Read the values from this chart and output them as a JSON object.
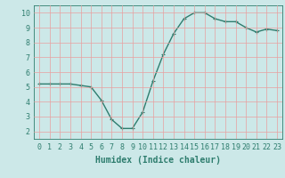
{
  "x": [
    0,
    1,
    2,
    3,
    4,
    5,
    6,
    7,
    8,
    9,
    10,
    11,
    12,
    13,
    14,
    15,
    16,
    17,
    18,
    19,
    20,
    21,
    22,
    23
  ],
  "y": [
    5.2,
    5.2,
    5.2,
    5.2,
    5.1,
    5.0,
    4.1,
    2.8,
    2.2,
    2.2,
    3.3,
    5.4,
    7.2,
    8.6,
    9.6,
    10.0,
    10.0,
    9.6,
    9.4,
    9.4,
    9.0,
    8.7,
    8.9,
    8.8
  ],
  "line_color": "#2e7d6e",
  "marker": "+",
  "marker_size": 3,
  "background_color": "#cce8e8",
  "grid_color": "#e8a0a0",
  "xlabel": "Humidex (Indice chaleur)",
  "xlim": [
    -0.5,
    23.5
  ],
  "ylim": [
    1.5,
    10.5
  ],
  "xticks": [
    0,
    1,
    2,
    3,
    4,
    5,
    6,
    7,
    8,
    9,
    10,
    11,
    12,
    13,
    14,
    15,
    16,
    17,
    18,
    19,
    20,
    21,
    22,
    23
  ],
  "yticks": [
    2,
    3,
    4,
    5,
    6,
    7,
    8,
    9,
    10
  ],
  "tick_color": "#2e7d6e",
  "xlabel_fontsize": 7,
  "tick_fontsize": 6,
  "line_width": 1.0
}
